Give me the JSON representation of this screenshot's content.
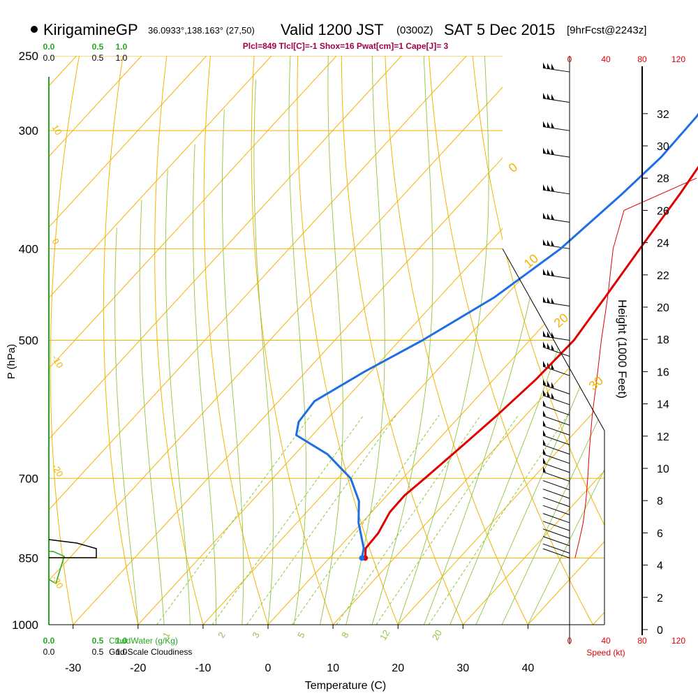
{
  "header": {
    "station": "KirigamineGP",
    "coords": "36.0933°,138.163° (27,50)",
    "valid": "Valid 1200 JST",
    "utc": "(0300Z)",
    "date": "SAT 5 Dec 2015",
    "forecast": "[9hrFcst@2243z]",
    "indices": "Plcl=849 Tlcl[C]=-1 Shox=16 Pwat[cm]=1 Cape[J]= 3"
  },
  "colors": {
    "isotherm": "#f2b400",
    "dry_adiabat": "#f2b400",
    "moist_adiabat": "#8ec63f",
    "mixing_ratio": "#8ec63f",
    "temperature": "#e00000",
    "dewpoint": "#1e6ee6",
    "cloud_water": "#22aa22",
    "wind_scale": "#e00000",
    "index_text": "#a0004a"
  },
  "chart_data": {
    "type": "line",
    "subtype": "skew-t log-p sounding",
    "xlabel": "Temperature (C)",
    "ylabel": "P (hPa)",
    "y2label": "Height (1000 Feet)",
    "x_ticks": [
      "-30",
      "-20",
      "-10",
      "0",
      "10",
      "20",
      "30",
      "40"
    ],
    "x_tick_values": [
      -30,
      -20,
      -10,
      0,
      10,
      20,
      30,
      40
    ],
    "p_ticks": [
      "250",
      "300",
      "400",
      "500",
      "700",
      "850",
      "1000"
    ],
    "p_tick_values": [
      250,
      300,
      400,
      500,
      700,
      850,
      1000
    ],
    "ylim_hpa": [
      1000,
      250
    ],
    "height_ticks": [
      "0",
      "2",
      "4",
      "6",
      "8",
      "10",
      "12",
      "14",
      "16",
      "18",
      "20",
      "22",
      "24",
      "26",
      "28",
      "30",
      "32"
    ],
    "height_tick_values": [
      0,
      2,
      4,
      6,
      8,
      10,
      12,
      14,
      16,
      18,
      20,
      22,
      24,
      26,
      28,
      30,
      32
    ],
    "speed_ticks": [
      "0",
      "40",
      "80",
      "120"
    ],
    "speed_tick_values": [
      0,
      40,
      80,
      120
    ],
    "speed_label": "Speed (kt)",
    "cloud_water_ticks": [
      "0.0",
      "0.5",
      "1.0"
    ],
    "cloud_water_label": "CloudWater (g/Kg)",
    "cloudiness_ticks": [
      "0.0",
      "0.5",
      "1.0"
    ],
    "cloudiness_label": "Grid-Scale Cloudiness",
    "mixing_ratio_labels": [
      "1",
      "2",
      "3",
      "5",
      "8",
      "12",
      "20"
    ],
    "mixing_ratio_values": [
      1,
      2,
      3,
      5,
      8,
      12,
      20
    ],
    "adiabat_labels": [
      "10",
      "0",
      "-10",
      "-20",
      "-30"
    ],
    "adiabat_right_labels": [
      "0",
      "10",
      "20",
      "30"
    ],
    "series": [
      {
        "name": "Temperature",
        "points": [
          [
            5.5,
            850
          ],
          [
            4.2,
            830
          ],
          [
            4.0,
            800
          ],
          [
            2.8,
            760
          ],
          [
            2.7,
            730
          ],
          [
            3.4,
            700
          ],
          [
            4.5,
            650
          ],
          [
            5.6,
            600
          ],
          [
            6.5,
            550
          ],
          [
            6.8,
            500
          ],
          [
            5.5,
            450
          ],
          [
            4.0,
            400
          ],
          [
            2.4,
            350
          ],
          [
            0.6,
            310
          ],
          [
            -0.7,
            290
          ],
          [
            -1.5,
            265
          ]
        ]
      },
      {
        "name": "Dewpoint",
        "points": [
          [
            5.0,
            850
          ],
          [
            3.9,
            830
          ],
          [
            -0.5,
            780
          ],
          [
            -3.5,
            740
          ],
          [
            -8.0,
            700
          ],
          [
            -15.0,
            660
          ],
          [
            -22.5,
            630
          ],
          [
            -24.0,
            610
          ],
          [
            -24.5,
            580
          ],
          [
            -21.0,
            540
          ],
          [
            -16.5,
            500
          ],
          [
            -11.5,
            450
          ],
          [
            -8.2,
            400
          ],
          [
            -6.5,
            350
          ],
          [
            -5.7,
            320
          ],
          [
            -6.0,
            290
          ],
          [
            -7.0,
            265
          ]
        ]
      },
      {
        "name": "Wind Speed",
        "points": [
          [
            6,
            850
          ],
          [
            10,
            820
          ],
          [
            15,
            780
          ],
          [
            18,
            740
          ],
          [
            20,
            700
          ],
          [
            22,
            650
          ],
          [
            25,
            600
          ],
          [
            30,
            550
          ],
          [
            35,
            500
          ],
          [
            42,
            450
          ],
          [
            48,
            400
          ]
        ]
      }
    ]
  }
}
